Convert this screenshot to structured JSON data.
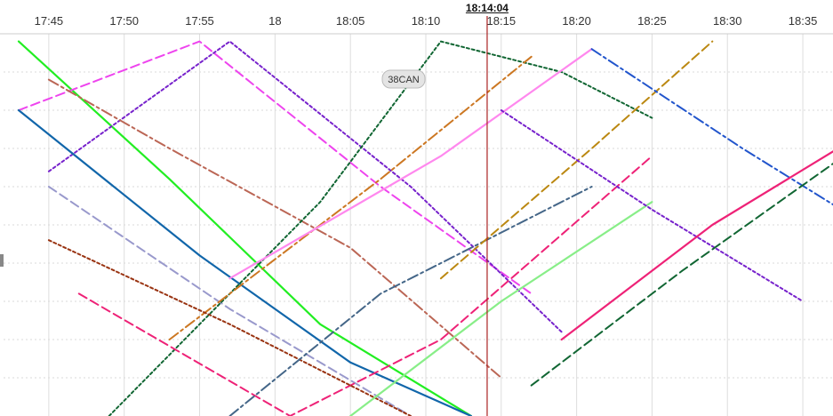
{
  "header": {
    "current_time": "18:14:04"
  },
  "tooltip": {
    "vehicle_label": "38CAN"
  },
  "chart_data": {
    "type": "line",
    "title": "",
    "xlabel": "",
    "ylabel": "",
    "x_ticks": [
      "17:45",
      "17:50",
      "17:55",
      "18",
      "18:05",
      "18:10",
      "18:15",
      "18:20",
      "18:25",
      "18:30",
      "18:35"
    ],
    "x_range": [
      "17:42",
      "18:37"
    ],
    "y_range": [
      0,
      100
    ],
    "grid": true,
    "now_marker": "18:14:04",
    "style_rule": "solid = recorded past trips, dashed = scheduled, dash-dot = future scheduled",
    "series": [
      {
        "color": "#22ee22",
        "points": [
          [
            -2,
            98
          ],
          [
            8,
            62
          ],
          [
            18,
            24
          ],
          [
            28,
            0
          ]
        ]
      },
      {
        "color": "#ee44ee",
        "points": [
          [
            -2,
            80
          ],
          [
            10,
            98
          ],
          [
            22,
            60
          ],
          [
            32,
            32
          ]
        ]
      },
      {
        "color": "#7722cc",
        "points": [
          [
            0,
            64
          ],
          [
            12,
            98
          ],
          [
            24,
            60
          ],
          [
            34,
            22
          ]
        ]
      },
      {
        "color": "#bb6655",
        "points": [
          [
            0,
            88
          ],
          [
            8,
            70
          ],
          [
            20,
            44
          ],
          [
            30,
            10
          ]
        ]
      },
      {
        "color": "#1166aa",
        "points": [
          [
            -2,
            80
          ],
          [
            10,
            42
          ],
          [
            20,
            14
          ],
          [
            28,
            0
          ]
        ]
      },
      {
        "color": "#9999cc",
        "points": [
          [
            0,
            60
          ],
          [
            12,
            28
          ],
          [
            24,
            0
          ]
        ]
      },
      {
        "color": "#116633",
        "points": [
          [
            4,
            0
          ],
          [
            18,
            56
          ],
          [
            26,
            98
          ],
          [
            34,
            90
          ],
          [
            40,
            78
          ]
        ]
      },
      {
        "color": "#cc7722",
        "points": [
          [
            8,
            20
          ],
          [
            22,
            62
          ],
          [
            32,
            94
          ]
        ]
      },
      {
        "color": "#ff88ee",
        "points": [
          [
            12,
            36
          ],
          [
            26,
            68
          ],
          [
            36,
            96
          ]
        ]
      },
      {
        "color": "#ee2277",
        "points": [
          [
            2,
            32
          ],
          [
            16,
            0
          ],
          [
            26,
            20
          ],
          [
            40,
            68
          ]
        ]
      },
      {
        "color": "#993311",
        "points": [
          [
            0,
            46
          ],
          [
            12,
            24
          ],
          [
            24,
            0
          ]
        ]
      },
      {
        "color": "#446688",
        "points": [
          [
            12,
            0
          ],
          [
            22,
            32
          ],
          [
            36,
            60
          ]
        ]
      },
      {
        "color": "#88ee88",
        "points": [
          [
            20,
            0
          ],
          [
            30,
            30
          ],
          [
            40,
            56
          ]
        ]
      },
      {
        "color": "#bb8811",
        "points": [
          [
            26,
            36
          ],
          [
            36,
            70
          ],
          [
            44,
            98
          ]
        ]
      },
      {
        "color": "#7722cc",
        "points": [
          [
            30,
            80
          ],
          [
            40,
            54
          ],
          [
            50,
            30
          ]
        ]
      },
      {
        "color": "#2255cc",
        "points": [
          [
            36,
            96
          ],
          [
            46,
            70
          ],
          [
            55,
            48
          ]
        ]
      },
      {
        "color": "#ee2277",
        "points": [
          [
            34,
            20
          ],
          [
            44,
            50
          ],
          [
            54,
            74
          ]
        ]
      },
      {
        "color": "#116633",
        "points": [
          [
            32,
            8
          ],
          [
            42,
            38
          ],
          [
            52,
            66
          ]
        ]
      }
    ]
  }
}
